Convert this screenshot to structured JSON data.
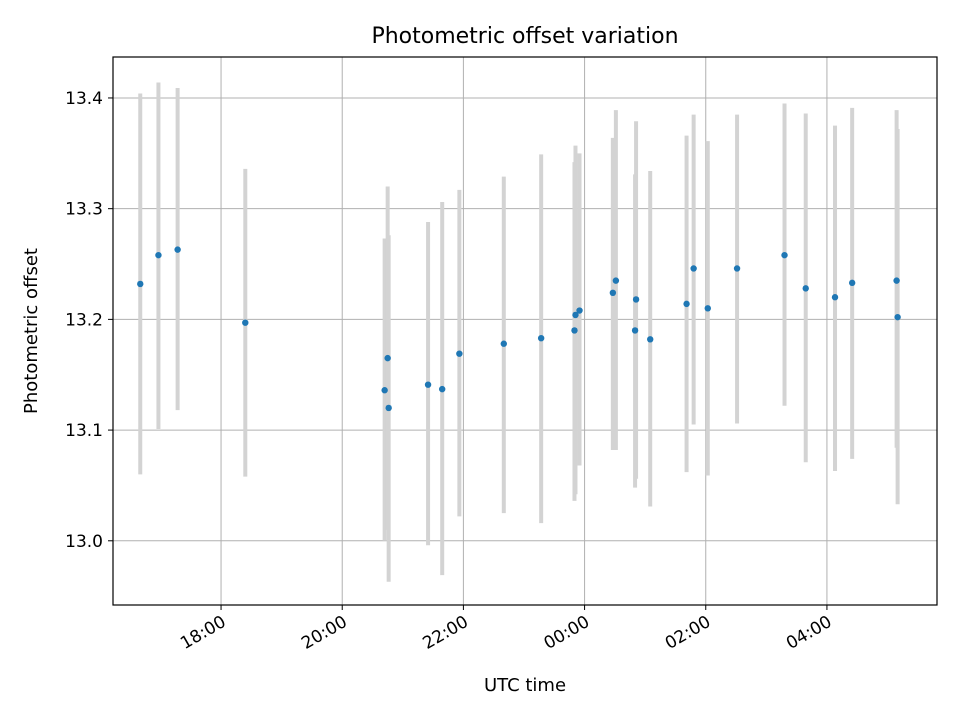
{
  "chart_data": {
    "type": "scatter",
    "title": "Photometric offset variation",
    "xlabel": "UTC time",
    "ylabel": "Photometric offset",
    "x_axis_type": "time",
    "xlim": [
      "16:13",
      "05:49"
    ],
    "ylim": [
      12.942,
      13.437
    ],
    "yticks": [
      13.0,
      13.1,
      13.2,
      13.3,
      13.4
    ],
    "xticks": [
      "18:00",
      "20:00",
      "22:00",
      "00:00",
      "02:00",
      "04:00"
    ],
    "grid": true,
    "legend": "none",
    "point_color": "#1f77b4",
    "errorbar_color": "#d3d3d3",
    "series": [
      {
        "points": [
          {
            "time": "16:40",
            "y": 13.232,
            "ylow": 13.06,
            "yhigh": 13.404
          },
          {
            "time": "16:58",
            "y": 13.258,
            "ylow": 13.101,
            "yhigh": 13.414
          },
          {
            "time": "17:17",
            "y": 13.263,
            "ylow": 13.118,
            "yhigh": 13.409
          },
          {
            "time": "18:24",
            "y": 13.197,
            "ylow": 13.058,
            "yhigh": 13.336
          },
          {
            "time": "20:42",
            "y": 13.136,
            "ylow": 13.0,
            "yhigh": 13.273
          },
          {
            "time": "20:45",
            "y": 13.165,
            "ylow": 13.01,
            "yhigh": 13.32
          },
          {
            "time": "20:46",
            "y": 13.12,
            "ylow": 12.963,
            "yhigh": 13.276
          },
          {
            "time": "21:25",
            "y": 13.141,
            "ylow": 12.996,
            "yhigh": 13.288
          },
          {
            "time": "21:39",
            "y": 13.137,
            "ylow": 12.969,
            "yhigh": 13.306
          },
          {
            "time": "21:56",
            "y": 13.169,
            "ylow": 13.022,
            "yhigh": 13.317
          },
          {
            "time": "22:40",
            "y": 13.178,
            "ylow": 13.025,
            "yhigh": 13.329
          },
          {
            "time": "23:17",
            "y": 13.183,
            "ylow": 13.016,
            "yhigh": 13.349
          },
          {
            "time": "23:50",
            "y": 13.19,
            "ylow": 13.036,
            "yhigh": 13.342
          },
          {
            "time": "23:51",
            "y": 13.204,
            "ylow": 13.042,
            "yhigh": 13.357
          },
          {
            "time": "23:55",
            "y": 13.208,
            "ylow": 13.068,
            "yhigh": 13.35
          },
          {
            "time": "00:28",
            "y": 13.224,
            "ylow": 13.082,
            "yhigh": 13.364
          },
          {
            "time": "00:31",
            "y": 13.235,
            "ylow": 13.082,
            "yhigh": 13.389
          },
          {
            "time": "00:50",
            "y": 13.19,
            "ylow": 13.048,
            "yhigh": 13.331
          },
          {
            "time": "00:51",
            "y": 13.218,
            "ylow": 13.056,
            "yhigh": 13.379
          },
          {
            "time": "01:05",
            "y": 13.182,
            "ylow": 13.031,
            "yhigh": 13.334
          },
          {
            "time": "01:41",
            "y": 13.214,
            "ylow": 13.062,
            "yhigh": 13.366
          },
          {
            "time": "01:48",
            "y": 13.246,
            "ylow": 13.105,
            "yhigh": 13.385
          },
          {
            "time": "02:02",
            "y": 13.21,
            "ylow": 13.059,
            "yhigh": 13.361
          },
          {
            "time": "02:31",
            "y": 13.246,
            "ylow": 13.106,
            "yhigh": 13.385
          },
          {
            "time": "03:18",
            "y": 13.258,
            "ylow": 13.122,
            "yhigh": 13.395
          },
          {
            "time": "03:39",
            "y": 13.228,
            "ylow": 13.071,
            "yhigh": 13.386
          },
          {
            "time": "04:08",
            "y": 13.22,
            "ylow": 13.063,
            "yhigh": 13.375
          },
          {
            "time": "04:25",
            "y": 13.233,
            "ylow": 13.074,
            "yhigh": 13.391
          },
          {
            "time": "05:09",
            "y": 13.235,
            "ylow": 13.084,
            "yhigh": 13.389
          },
          {
            "time": "05:10",
            "y": 13.202,
            "ylow": 13.033,
            "yhigh": 13.372
          }
        ]
      }
    ]
  }
}
